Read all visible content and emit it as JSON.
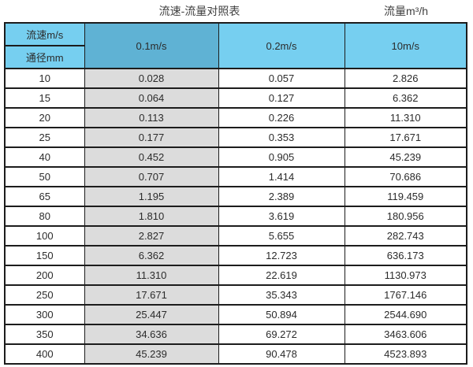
{
  "page": {
    "title": "流速-流量对照表",
    "unit_label": "流量m³/h"
  },
  "colors": {
    "header_blue": "#76cff0",
    "header_blue_dark": "#5fb2d4",
    "column_gray": "#dcdcdc",
    "border": "#1c1c1c"
  },
  "chart_data": {
    "type": "table",
    "title": "流速-流量对照表",
    "unit": "流量m³/h",
    "corner_top_label": "流速m/s",
    "corner_bottom_label": "通径mm",
    "columns": [
      "0.1m/s",
      "0.2m/s",
      "10m/s"
    ],
    "row_header_label": "通径mm",
    "rows": [
      {
        "dn": "10",
        "values": [
          "0.028",
          "0.057",
          "2.826"
        ]
      },
      {
        "dn": "15",
        "values": [
          "0.064",
          "0.127",
          "6.362"
        ]
      },
      {
        "dn": "20",
        "values": [
          "0.113",
          "0.226",
          "11.310"
        ]
      },
      {
        "dn": "25",
        "values": [
          "0.177",
          "0.353",
          "17.671"
        ]
      },
      {
        "dn": "40",
        "values": [
          "0.452",
          "0.905",
          "45.239"
        ]
      },
      {
        "dn": "50",
        "values": [
          "0.707",
          "1.414",
          "70.686"
        ]
      },
      {
        "dn": "65",
        "values": [
          "1.195",
          "2.389",
          "119.459"
        ]
      },
      {
        "dn": "80",
        "values": [
          "1.810",
          "3.619",
          "180.956"
        ]
      },
      {
        "dn": "100",
        "values": [
          "2.827",
          "5.655",
          "282.743"
        ]
      },
      {
        "dn": "150",
        "values": [
          "6.362",
          "12.723",
          "636.173"
        ]
      },
      {
        "dn": "200",
        "values": [
          "11.310",
          "22.619",
          "1130.973"
        ]
      },
      {
        "dn": "250",
        "values": [
          "17.671",
          "35.343",
          "1767.146"
        ]
      },
      {
        "dn": "300",
        "values": [
          "25.447",
          "50.894",
          "2544.690"
        ]
      },
      {
        "dn": "350",
        "values": [
          "34.636",
          "69.272",
          "3463.606"
        ]
      },
      {
        "dn": "400",
        "values": [
          "45.239",
          "90.478",
          "4523.893"
        ]
      }
    ]
  }
}
